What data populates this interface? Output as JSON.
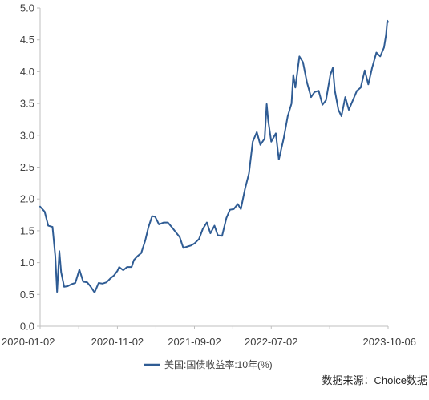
{
  "chart_data": {
    "type": "line",
    "title": "",
    "xlabel": "",
    "ylabel": "",
    "ylim": [
      0,
      5
    ],
    "yticks": [
      0.0,
      0.5,
      1.0,
      1.5,
      2.0,
      2.5,
      3.0,
      3.5,
      4.0,
      4.5,
      5.0
    ],
    "ytick_labels": [
      "0.0",
      "0.5",
      "1.0",
      "1.5",
      "2.0",
      "2.5",
      "3.0",
      "3.5",
      "4.0",
      "4.5",
      "5.0"
    ],
    "xlim": [
      "2020-01-02",
      "2023-10-06"
    ],
    "xtick_labels": [
      "2020-01-02",
      "2020-11-02",
      "2021-09-02",
      "2022-07-02",
      "2023-10-06"
    ],
    "grid": false,
    "legend_position": "bottom",
    "line_color": "#2F5C94",
    "series": [
      {
        "name": "美国:国债收益率:10年(%)",
        "x": [
          "2020-01-02",
          "2020-01-20",
          "2020-02-03",
          "2020-02-20",
          "2020-03-02",
          "2020-03-09",
          "2020-03-18",
          "2020-03-25",
          "2020-04-06",
          "2020-04-20",
          "2020-05-04",
          "2020-05-20",
          "2020-06-05",
          "2020-06-20",
          "2020-07-06",
          "2020-07-20",
          "2020-08-04",
          "2020-08-20",
          "2020-09-04",
          "2020-09-20",
          "2020-10-05",
          "2020-10-20",
          "2020-11-02",
          "2020-11-09",
          "2020-11-25",
          "2020-12-10",
          "2020-12-28",
          "2021-01-06",
          "2021-01-20",
          "2021-02-04",
          "2021-02-20",
          "2021-03-04",
          "2021-03-19",
          "2021-03-31",
          "2021-04-15",
          "2021-05-04",
          "2021-05-20",
          "2021-06-04",
          "2021-06-20",
          "2021-07-06",
          "2021-07-20",
          "2021-08-04",
          "2021-08-20",
          "2021-09-02",
          "2021-09-20",
          "2021-10-05",
          "2021-10-21",
          "2021-11-04",
          "2021-11-20",
          "2021-12-03",
          "2021-12-20",
          "2022-01-06",
          "2022-01-20",
          "2022-02-04",
          "2022-02-20",
          "2022-03-04",
          "2022-03-20",
          "2022-04-05",
          "2022-04-20",
          "2022-05-06",
          "2022-05-20",
          "2022-06-06",
          "2022-06-14",
          "2022-06-20",
          "2022-07-02",
          "2022-07-20",
          "2022-08-01",
          "2022-08-20",
          "2022-09-05",
          "2022-09-20",
          "2022-09-27",
          "2022-10-05",
          "2022-10-21",
          "2022-11-04",
          "2022-11-20",
          "2022-12-06",
          "2022-12-20",
          "2023-01-05",
          "2023-01-20",
          "2023-02-03",
          "2023-02-20",
          "2023-03-02",
          "2023-03-10",
          "2023-03-24",
          "2023-04-05",
          "2023-04-20",
          "2023-05-04",
          "2023-05-20",
          "2023-06-05",
          "2023-06-20",
          "2023-07-06",
          "2023-07-20",
          "2023-08-04",
          "2023-08-21",
          "2023-09-05",
          "2023-09-20",
          "2023-09-28",
          "2023-10-03",
          "2023-10-06"
        ],
        "y": [
          1.88,
          1.8,
          1.58,
          1.56,
          1.1,
          0.54,
          1.18,
          0.85,
          0.62,
          0.63,
          0.66,
          0.68,
          0.89,
          0.7,
          0.69,
          0.62,
          0.53,
          0.68,
          0.67,
          0.69,
          0.75,
          0.8,
          0.87,
          0.93,
          0.88,
          0.93,
          0.93,
          1.04,
          1.1,
          1.15,
          1.35,
          1.55,
          1.73,
          1.72,
          1.6,
          1.63,
          1.63,
          1.56,
          1.48,
          1.4,
          1.23,
          1.25,
          1.27,
          1.3,
          1.37,
          1.53,
          1.63,
          1.46,
          1.58,
          1.43,
          1.42,
          1.7,
          1.83,
          1.84,
          1.92,
          1.84,
          2.15,
          2.4,
          2.9,
          3.05,
          2.85,
          2.95,
          3.49,
          3.23,
          2.9,
          3.03,
          2.62,
          2.95,
          3.3,
          3.5,
          3.95,
          3.75,
          4.24,
          4.15,
          3.83,
          3.6,
          3.68,
          3.7,
          3.48,
          3.55,
          3.95,
          4.06,
          3.7,
          3.4,
          3.3,
          3.6,
          3.4,
          3.55,
          3.7,
          3.75,
          4.02,
          3.8,
          4.06,
          4.3,
          4.24,
          4.38,
          4.58,
          4.8,
          4.78
        ]
      }
    ]
  },
  "source_note": "数据来源：Choice数据"
}
